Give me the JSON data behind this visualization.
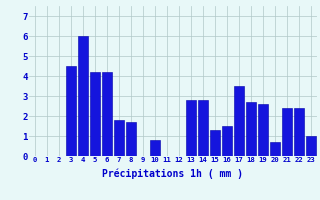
{
  "hours": [
    0,
    1,
    2,
    3,
    4,
    5,
    6,
    7,
    8,
    9,
    10,
    11,
    12,
    13,
    14,
    15,
    16,
    17,
    18,
    19,
    20,
    21,
    22,
    23
  ],
  "values": [
    0,
    0,
    0,
    4.5,
    6.0,
    4.2,
    4.2,
    1.8,
    1.7,
    0,
    0.8,
    0,
    0,
    2.8,
    2.8,
    1.3,
    1.5,
    3.5,
    2.7,
    2.6,
    0.7,
    2.4,
    2.4,
    1.0
  ],
  "bar_color": "#1515dd",
  "bar_edge_color": "#0000aa",
  "background_color": "#e8f8f8",
  "grid_color": "#b0c8c8",
  "xlabel": "Précipitations 1h ( mm )",
  "ylim": [
    0,
    7.5
  ],
  "yticks": [
    0,
    1,
    2,
    3,
    4,
    5,
    6,
    7
  ],
  "tick_color": "#0000cc",
  "xlabel_fontsize": 7.0,
  "xtick_fontsize": 5.2,
  "ytick_fontsize": 6.5
}
